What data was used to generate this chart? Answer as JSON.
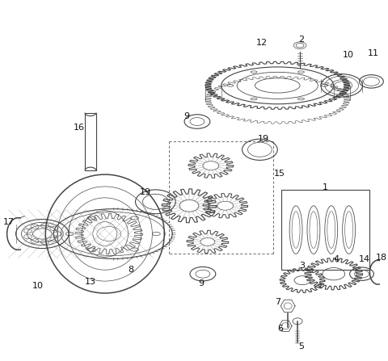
{
  "background_color": "#ffffff",
  "line_color": "#444444",
  "label_color": "#111111",
  "fig_width": 4.8,
  "fig_height": 4.47,
  "dpi": 100
}
